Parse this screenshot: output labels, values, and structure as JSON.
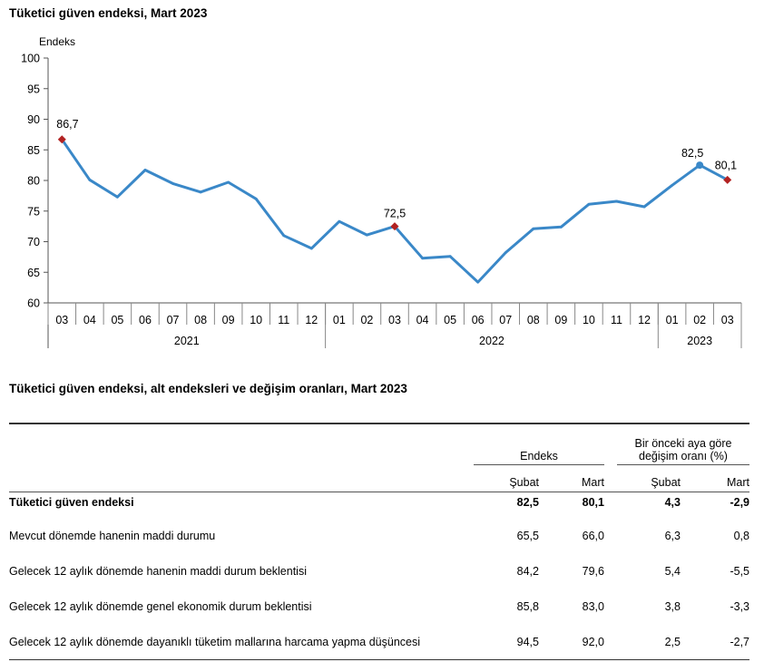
{
  "chart": {
    "title": "Tüketici güven endeksi, Mart 2023",
    "ylabel": "Endeks"
  },
  "chart_data": {
    "type": "line",
    "title": "Tüketici güven endeksi, Mart 2023",
    "ylabel": "Endeks",
    "ylim": [
      60,
      100
    ],
    "yticks": [
      60,
      65,
      70,
      75,
      80,
      85,
      90,
      95,
      100
    ],
    "grid": false,
    "line_color": "#3a88c8",
    "highlight_color": "#b22222",
    "x": [
      "03",
      "04",
      "05",
      "06",
      "07",
      "08",
      "09",
      "10",
      "11",
      "12",
      "01",
      "02",
      "03",
      "04",
      "05",
      "06",
      "07",
      "08",
      "09",
      "10",
      "11",
      "12",
      "01",
      "02",
      "03"
    ],
    "year_groups": [
      {
        "label": "2021",
        "start": 0,
        "end": 9
      },
      {
        "label": "2022",
        "start": 10,
        "end": 21
      },
      {
        "label": "2023",
        "start": 22,
        "end": 24
      }
    ],
    "series": [
      {
        "values": [
          86.7,
          80.1,
          77.3,
          81.7,
          79.5,
          78.1,
          79.7,
          77.0,
          71.0,
          68.9,
          73.3,
          71.1,
          72.5,
          67.3,
          67.6,
          63.4,
          68.2,
          72.1,
          72.4,
          76.1,
          76.6,
          75.7,
          79.2,
          82.5,
          80.1
        ]
      }
    ],
    "annotations": [
      {
        "index": 0,
        "label": "86,7",
        "marker": "diamond"
      },
      {
        "index": 12,
        "label": "72,5",
        "marker": "diamond"
      },
      {
        "index": 23,
        "label": "82,5",
        "marker": "circle"
      },
      {
        "index": 24,
        "label": "80,1",
        "marker": "diamond"
      }
    ]
  },
  "table": {
    "title": "Tüketici güven endeksi, alt endeksleri ve değişim oranları, Mart 2023",
    "group_endeks": "Endeks",
    "group_change_line1": "Bir önceki aya göre",
    "group_change_line2": "değişim oranı (%)",
    "sub_headers": [
      "Şubat",
      "Mart",
      "Şubat",
      "Mart"
    ],
    "rows": [
      {
        "label": "Tüketici güven endeksi",
        "values": [
          "82,5",
          "80,1",
          "4,3",
          "-2,9"
        ]
      },
      {
        "label": "Mevcut dönemde hanenin maddi durumu",
        "values": [
          "65,5",
          "66,0",
          "6,3",
          "0,8"
        ]
      },
      {
        "label": "Gelecek 12 aylık dönemde hanenin maddi durum beklentisi",
        "values": [
          "84,2",
          "79,6",
          "5,4",
          "-5,5"
        ]
      },
      {
        "label": "Gelecek 12 aylık dönemde genel ekonomik durum beklentisi",
        "values": [
          "85,8",
          "83,0",
          "3,8",
          "-3,3"
        ]
      },
      {
        "label": "Gelecek 12 aylık dönemde dayanıklı tüketim mallarına harcama yapma düşüncesi",
        "values": [
          "94,5",
          "92,0",
          "2,5",
          "-2,7"
        ]
      }
    ]
  }
}
